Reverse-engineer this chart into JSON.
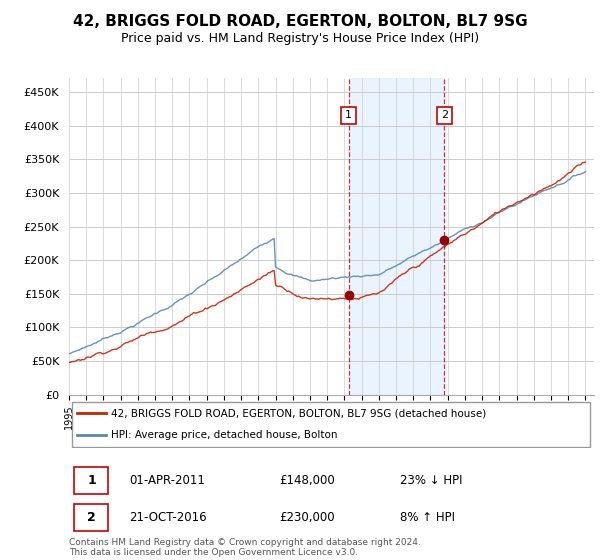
{
  "title": "42, BRIGGS FOLD ROAD, EGERTON, BOLTON, BL7 9SG",
  "subtitle": "Price paid vs. HM Land Registry's House Price Index (HPI)",
  "ylabel_ticks": [
    "£0",
    "£50K",
    "£100K",
    "£150K",
    "£200K",
    "£250K",
    "£300K",
    "£350K",
    "£400K",
    "£450K"
  ],
  "ytick_values": [
    0,
    50000,
    100000,
    150000,
    200000,
    250000,
    300000,
    350000,
    400000,
    450000
  ],
  "ylim": [
    0,
    470000
  ],
  "xlim_left": 1995,
  "xlim_right": 2025.5,
  "legend_line1": "42, BRIGGS FOLD ROAD, EGERTON, BOLTON, BL7 9SG (detached house)",
  "legend_line2": "HPI: Average price, detached house, Bolton",
  "transaction1_date": "01-APR-2011",
  "transaction1_price": "£148,000",
  "transaction1_hpi": "23% ↓ HPI",
  "transaction2_date": "21-OCT-2016",
  "transaction2_price": "£230,000",
  "transaction2_hpi": "8% ↑ HPI",
  "footer": "Contains HM Land Registry data © Crown copyright and database right 2024.\nThis data is licensed under the Open Government Licence v3.0.",
  "transaction1_x": 2011.25,
  "transaction2_x": 2016.8,
  "transaction1_y": 148000,
  "transaction2_y": 230000,
  "vline_color": "#cc0000",
  "highlight_color": "#ddeeff",
  "hpi_color": "#5588bb",
  "price_color": "#cc2200",
  "marker_color": "#990000",
  "background_color": "#ffffff",
  "grid_color": "#cccccc"
}
